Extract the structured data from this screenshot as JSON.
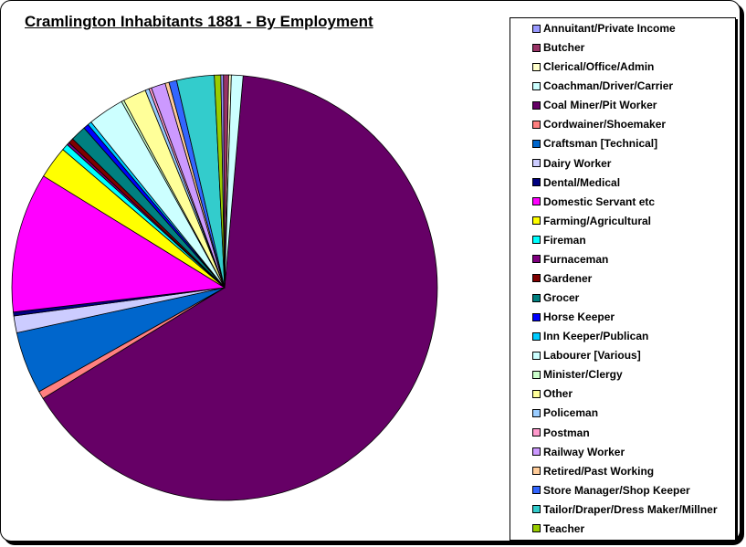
{
  "chart_data": {
    "type": "pie",
    "title": "Cramlington Inhabitants 1881 - By Employment",
    "legend_position": "right",
    "slices": [
      {
        "label": "Coal Miner/Pit Worker",
        "value": 66.0,
        "color": "#660066"
      },
      {
        "label": "Cordwainer/Shoemaker",
        "value": 0.6,
        "color": "#ff8080"
      },
      {
        "label": "Craftsman [Technical]",
        "value": 4.8,
        "color": "#0066cc"
      },
      {
        "label": "Dairy Worker",
        "value": 1.3,
        "color": "#ccccff"
      },
      {
        "label": "Dental/Medical",
        "value": 0.3,
        "color": "#000080"
      },
      {
        "label": "Domestic Servant etc",
        "value": 10.8,
        "color": "#ff00ff"
      },
      {
        "label": "Farming/Agricultural",
        "value": 2.5,
        "color": "#ffff00"
      },
      {
        "label": "Fireman",
        "value": 0.5,
        "color": "#00ffff"
      },
      {
        "label": "Furnaceman",
        "value": 0.2,
        "color": "#800080"
      },
      {
        "label": "Gardener",
        "value": 0.4,
        "color": "#800000"
      },
      {
        "label": "Grocer",
        "value": 1.2,
        "color": "#008080"
      },
      {
        "label": "Horse Keeper",
        "value": 0.4,
        "color": "#0000ff"
      },
      {
        "label": "Inn Keeper/Publican",
        "value": 0.3,
        "color": "#00ccff"
      },
      {
        "label": "Labourer [Various]",
        "value": 2.8,
        "color": "#ccffff"
      },
      {
        "label": "Minister/Clergy",
        "value": 0.2,
        "color": "#ccffcc"
      },
      {
        "label": "Other",
        "value": 1.8,
        "color": "#ffff99"
      },
      {
        "label": "Policeman",
        "value": 0.3,
        "color": "#99ccff"
      },
      {
        "label": "Postman",
        "value": 0.2,
        "color": "#ff99cc"
      },
      {
        "label": "Railway Worker",
        "value": 1.1,
        "color": "#cc99ff"
      },
      {
        "label": "Retired/Past Working",
        "value": 0.3,
        "color": "#ffcc99"
      },
      {
        "label": "Store Manager/Shop Keeper",
        "value": 0.6,
        "color": "#3366ff"
      },
      {
        "label": "Tailor/Draper/Dress Maker/Millner",
        "value": 2.9,
        "color": "#33cccc"
      },
      {
        "label": "Teacher",
        "value": 0.5,
        "color": "#99cc00"
      },
      {
        "label": "Annuitant/Private Income",
        "value": 0.2,
        "color": "#9999ff"
      },
      {
        "label": "Butcher",
        "value": 0.4,
        "color": "#993366"
      },
      {
        "label": "Clerical/Office/Admin",
        "value": 0.2,
        "color": "#ffffcc"
      },
      {
        "label": "Coachman/Driver/Carrier",
        "value": 0.9,
        "color": "#ccffff"
      }
    ],
    "legend": [
      {
        "label": "Annuitant/Private Income",
        "color": "#9999ff"
      },
      {
        "label": "Butcher",
        "color": "#993366"
      },
      {
        "label": "Clerical/Office/Admin",
        "color": "#ffffcc"
      },
      {
        "label": "Coachman/Driver/Carrier",
        "color": "#ccffff"
      },
      {
        "label": "Coal Miner/Pit Worker",
        "color": "#660066"
      },
      {
        "label": "Cordwainer/Shoemaker",
        "color": "#ff8080"
      },
      {
        "label": "Craftsman [Technical]",
        "color": "#0066cc"
      },
      {
        "label": "Dairy Worker",
        "color": "#ccccff"
      },
      {
        "label": "Dental/Medical",
        "color": "#000080"
      },
      {
        "label": "Domestic Servant etc",
        "color": "#ff00ff"
      },
      {
        "label": "Farming/Agricultural",
        "color": "#ffff00"
      },
      {
        "label": "Fireman",
        "color": "#00ffff"
      },
      {
        "label": "Furnaceman",
        "color": "#800080"
      },
      {
        "label": "Gardener",
        "color": "#800000"
      },
      {
        "label": "Grocer",
        "color": "#008080"
      },
      {
        "label": "Horse Keeper",
        "color": "#0000ff"
      },
      {
        "label": "Inn Keeper/Publican",
        "color": "#00ccff"
      },
      {
        "label": "Labourer [Various]",
        "color": "#ccffff"
      },
      {
        "label": "Minister/Clergy",
        "color": "#ccffcc"
      },
      {
        "label": "Other",
        "color": "#ffff99"
      },
      {
        "label": "Policeman",
        "color": "#99ccff"
      },
      {
        "label": "Postman",
        "color": "#ff99cc"
      },
      {
        "label": "Railway Worker",
        "color": "#cc99ff"
      },
      {
        "label": "Retired/Past Working",
        "color": "#ffcc99"
      },
      {
        "label": "Store Manager/Shop Keeper",
        "color": "#3366ff"
      },
      {
        "label": "Tailor/Draper/Dress Maker/Millner",
        "color": "#33cccc"
      },
      {
        "label": "Teacher",
        "color": "#99cc00"
      }
    ]
  }
}
